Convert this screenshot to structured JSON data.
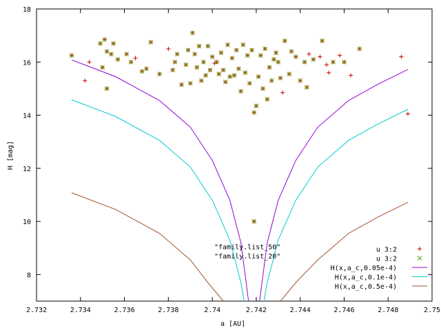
{
  "chart_data": {
    "type": "scatter",
    "xlabel": "a [AU]",
    "ylabel": "H [mag]",
    "xlim": [
      2.732,
      2.75
    ],
    "ylim": [
      7,
      18
    ],
    "xticks": [
      "2.732",
      "2.734",
      "2.736",
      "2.738",
      "2.74",
      "2.742",
      "2.744",
      "2.746",
      "2.748",
      "2.75"
    ],
    "yticks": [
      "8",
      "10",
      "12",
      "14",
      "16",
      "18"
    ],
    "legend_position": "bottom-right",
    "annotations": [
      {
        "text": "\"family.list_50\"",
        "x": 2.7416,
        "y": 8.95
      },
      {
        "text": "\"family.list_20\"",
        "x": 2.7416,
        "y": 8.6
      }
    ],
    "series": [
      {
        "name": "u 3:2",
        "marker": "plus",
        "color": "#cc0000",
        "points": [
          [
            2.7336,
            16.25
          ],
          [
            2.7342,
            15.3
          ],
          [
            2.7344,
            16.0
          ],
          [
            2.7349,
            16.7
          ],
          [
            2.7351,
            16.85
          ],
          [
            2.735,
            15.8
          ],
          [
            2.7352,
            16.4
          ],
          [
            2.7352,
            15.0
          ],
          [
            2.7354,
            16.3
          ],
          [
            2.7355,
            16.7
          ],
          [
            2.7357,
            16.1
          ],
          [
            2.7361,
            16.3
          ],
          [
            2.7363,
            16.0
          ],
          [
            2.7365,
            16.15
          ],
          [
            2.7368,
            15.65
          ],
          [
            2.737,
            15.75
          ],
          [
            2.7372,
            16.75
          ],
          [
            2.7376,
            15.55
          ],
          [
            2.738,
            16.5
          ],
          [
            2.7382,
            15.7
          ],
          [
            2.7383,
            16.0
          ],
          [
            2.7384,
            16.3
          ],
          [
            2.7386,
            15.15
          ],
          [
            2.7388,
            15.9
          ],
          [
            2.7389,
            16.45
          ],
          [
            2.739,
            15.2
          ],
          [
            2.7391,
            17.1
          ],
          [
            2.7392,
            16.3
          ],
          [
            2.7393,
            15.8
          ],
          [
            2.7394,
            16.6
          ],
          [
            2.7395,
            15.3
          ],
          [
            2.7396,
            16.0
          ],
          [
            2.7397,
            15.5
          ],
          [
            2.7398,
            16.6
          ],
          [
            2.7399,
            15.7
          ],
          [
            2.74,
            16.2
          ],
          [
            2.7401,
            15.95
          ],
          [
            2.7402,
            16.0
          ],
          [
            2.7403,
            15.55
          ],
          [
            2.7404,
            16.35
          ],
          [
            2.7405,
            15.7
          ],
          [
            2.7406,
            15.25
          ],
          [
            2.7407,
            16.65
          ],
          [
            2.7408,
            15.45
          ],
          [
            2.7409,
            16.15
          ],
          [
            2.741,
            15.5
          ],
          [
            2.7411,
            16.45
          ],
          [
            2.7412,
            15.75
          ],
          [
            2.7413,
            14.9
          ],
          [
            2.7414,
            16.65
          ],
          [
            2.7415,
            15.6
          ],
          [
            2.7416,
            16.25
          ],
          [
            2.7417,
            15.2
          ],
          [
            2.7418,
            16.45
          ],
          [
            2.7419,
            14.1
          ],
          [
            2.742,
            14.35
          ],
          [
            2.7421,
            15.45
          ],
          [
            2.7422,
            16.25
          ],
          [
            2.7423,
            15.0
          ],
          [
            2.7424,
            16.5
          ],
          [
            2.7425,
            14.6
          ],
          [
            2.7426,
            15.8
          ],
          [
            2.7427,
            15.3
          ],
          [
            2.7428,
            16.1
          ],
          [
            2.7429,
            16.35
          ],
          [
            2.743,
            16.0
          ],
          [
            2.7431,
            15.4
          ],
          [
            2.7432,
            14.85
          ],
          [
            2.7433,
            16.8
          ],
          [
            2.7435,
            15.55
          ],
          [
            2.7436,
            16.4
          ],
          [
            2.7438,
            16.2
          ],
          [
            2.744,
            15.3
          ],
          [
            2.7442,
            16.0
          ],
          [
            2.7443,
            15.05
          ],
          [
            2.7444,
            16.3
          ],
          [
            2.7446,
            16.1
          ],
          [
            2.7449,
            16.2
          ],
          [
            2.745,
            16.8
          ],
          [
            2.7452,
            15.9
          ],
          [
            2.7453,
            15.6
          ],
          [
            2.7455,
            16.0
          ],
          [
            2.7458,
            16.25
          ],
          [
            2.746,
            16.0
          ],
          [
            2.7463,
            15.5
          ],
          [
            2.7467,
            16.5
          ],
          [
            2.7486,
            16.2
          ],
          [
            2.7489,
            14.05
          ],
          [
            2.7419,
            10.0
          ]
        ]
      },
      {
        "name": "u 3:2",
        "marker": "cross",
        "color": "#55a000",
        "points": [
          [
            2.7336,
            16.25
          ],
          [
            2.7349,
            16.7
          ],
          [
            2.7351,
            16.85
          ],
          [
            2.735,
            15.8
          ],
          [
            2.7352,
            16.4
          ],
          [
            2.7352,
            15.0
          ],
          [
            2.7354,
            16.3
          ],
          [
            2.7355,
            16.7
          ],
          [
            2.7357,
            16.1
          ],
          [
            2.7361,
            16.3
          ],
          [
            2.7363,
            16.0
          ],
          [
            2.7368,
            15.65
          ],
          [
            2.737,
            15.75
          ],
          [
            2.7372,
            16.75
          ],
          [
            2.7376,
            15.55
          ],
          [
            2.7382,
            15.7
          ],
          [
            2.7383,
            16.0
          ],
          [
            2.7384,
            16.3
          ],
          [
            2.7386,
            15.15
          ],
          [
            2.7388,
            15.9
          ],
          [
            2.7389,
            16.45
          ],
          [
            2.739,
            15.2
          ],
          [
            2.7391,
            17.1
          ],
          [
            2.7392,
            16.3
          ],
          [
            2.7393,
            15.8
          ],
          [
            2.7394,
            16.6
          ],
          [
            2.7395,
            15.3
          ],
          [
            2.7396,
            16.0
          ],
          [
            2.7397,
            15.5
          ],
          [
            2.7398,
            16.6
          ],
          [
            2.7399,
            15.7
          ],
          [
            2.74,
            16.2
          ],
          [
            2.7402,
            16.0
          ],
          [
            2.7403,
            15.55
          ],
          [
            2.7404,
            16.35
          ],
          [
            2.7405,
            15.7
          ],
          [
            2.7406,
            15.25
          ],
          [
            2.7407,
            16.65
          ],
          [
            2.7408,
            15.45
          ],
          [
            2.7409,
            16.15
          ],
          [
            2.741,
            15.5
          ],
          [
            2.7411,
            16.45
          ],
          [
            2.7412,
            15.75
          ],
          [
            2.7413,
            14.9
          ],
          [
            2.7414,
            16.65
          ],
          [
            2.7415,
            15.6
          ],
          [
            2.7416,
            16.25
          ],
          [
            2.7417,
            15.2
          ],
          [
            2.7418,
            16.45
          ],
          [
            2.7419,
            14.1
          ],
          [
            2.742,
            14.35
          ],
          [
            2.7421,
            15.45
          ],
          [
            2.7422,
            16.25
          ],
          [
            2.7423,
            15.0
          ],
          [
            2.7424,
            16.5
          ],
          [
            2.7425,
            14.6
          ],
          [
            2.7426,
            15.8
          ],
          [
            2.7427,
            15.3
          ],
          [
            2.7428,
            16.1
          ],
          [
            2.7429,
            16.35
          ],
          [
            2.743,
            16.0
          ],
          [
            2.7431,
            15.4
          ],
          [
            2.7433,
            16.8
          ],
          [
            2.7435,
            15.55
          ],
          [
            2.7436,
            16.4
          ],
          [
            2.7438,
            16.2
          ],
          [
            2.744,
            15.3
          ],
          [
            2.7442,
            16.0
          ],
          [
            2.7443,
            15.05
          ],
          [
            2.7446,
            16.1
          ],
          [
            2.745,
            16.8
          ],
          [
            2.7455,
            16.0
          ],
          [
            2.746,
            16.0
          ],
          [
            2.7467,
            16.5
          ],
          [
            2.7419,
            10.0
          ]
        ]
      },
      {
        "name": "H(x,a_c,0.05e-4)",
        "type": "line",
        "color": "#9400d3",
        "center": 2.7419,
        "x_left": [
          2.7336,
          2.74165
        ],
        "x_right": [
          2.74215,
          2.7489
        ],
        "points_left": [
          [
            2.7336,
            16.08
          ],
          [
            2.7356,
            15.45
          ],
          [
            2.7376,
            14.55
          ],
          [
            2.739,
            13.55
          ],
          [
            2.74,
            12.3
          ],
          [
            2.7408,
            10.8
          ],
          [
            2.7413,
            9.2
          ],
          [
            2.74165,
            7.0
          ]
        ],
        "points_right": [
          [
            2.74215,
            7.0
          ],
          [
            2.7425,
            9.2
          ],
          [
            2.743,
            10.8
          ],
          [
            2.7438,
            12.3
          ],
          [
            2.7448,
            13.55
          ],
          [
            2.7462,
            14.55
          ],
          [
            2.7475,
            15.15
          ],
          [
            2.7489,
            15.72
          ]
        ]
      },
      {
        "name": "H(x,a_c,0.1e-4)",
        "type": "line",
        "color": "#00cccc",
        "center": 2.7419,
        "points_left": [
          [
            2.7336,
            14.58
          ],
          [
            2.7356,
            13.95
          ],
          [
            2.7376,
            13.05
          ],
          [
            2.739,
            12.05
          ],
          [
            2.74,
            10.8
          ],
          [
            2.7408,
            9.3
          ],
          [
            2.7413,
            7.7
          ],
          [
            2.74145,
            7.0
          ]
        ],
        "points_right": [
          [
            2.74235,
            7.0
          ],
          [
            2.7425,
            7.7
          ],
          [
            2.743,
            9.3
          ],
          [
            2.7438,
            10.8
          ],
          [
            2.7448,
            12.05
          ],
          [
            2.7462,
            13.05
          ],
          [
            2.7475,
            13.65
          ],
          [
            2.7489,
            14.22
          ]
        ]
      },
      {
        "name": "H(x,a_c,0.5e-4)",
        "type": "line",
        "color": "#a0522d",
        "center": 2.7419,
        "points_left": [
          [
            2.7336,
            11.08
          ],
          [
            2.7356,
            10.45
          ],
          [
            2.7376,
            9.55
          ],
          [
            2.739,
            8.55
          ],
          [
            2.7398,
            7.7
          ],
          [
            2.7405,
            7.0
          ]
        ],
        "points_right": [
          [
            2.7431,
            7.0
          ],
          [
            2.7438,
            7.7
          ],
          [
            2.7448,
            8.55
          ],
          [
            2.7462,
            9.55
          ],
          [
            2.7475,
            10.15
          ],
          [
            2.7489,
            10.72
          ]
        ]
      }
    ]
  }
}
